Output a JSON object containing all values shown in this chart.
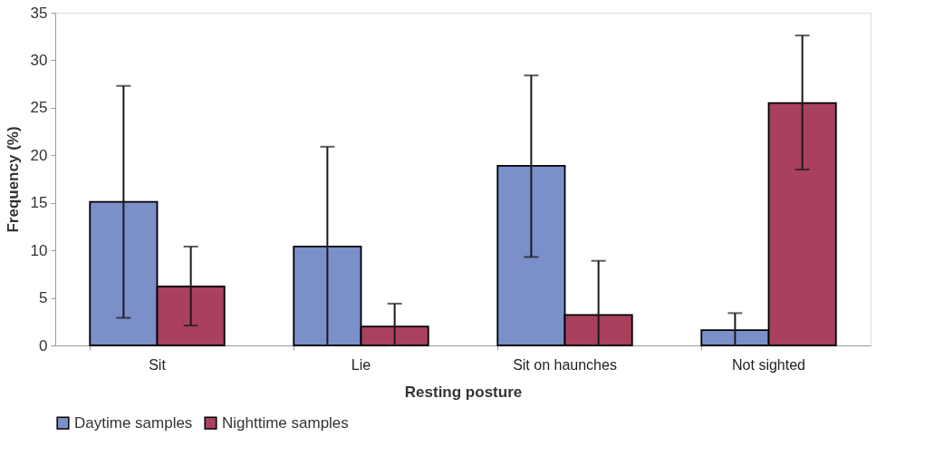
{
  "chart_data": {
    "type": "bar",
    "xlabel": "Resting posture",
    "ylabel": "Frequency (%)",
    "categories": [
      "Sit",
      "Lie",
      "Sit on haunches",
      "Not sighted"
    ],
    "series": [
      {
        "name": "Daytime samples",
        "color": "#7b8fc8",
        "values": [
          15.1,
          10.4,
          18.9,
          1.6
        ],
        "errors": [
          [
            2.9,
            27.3
          ],
          [
            0,
            20.9
          ],
          [
            9.3,
            28.4
          ],
          [
            0,
            3.4
          ]
        ]
      },
      {
        "name": "Nighttime samples",
        "color": "#a8405e",
        "values": [
          6.2,
          2.0,
          3.2,
          25.5
        ],
        "errors": [
          [
            2.1,
            10.4
          ],
          [
            0,
            4.4
          ],
          [
            0,
            8.9
          ],
          [
            18.5,
            32.6
          ]
        ]
      }
    ],
    "ylim": [
      0,
      35
    ],
    "yticks": [
      0,
      5,
      10,
      15,
      20,
      25,
      30,
      35
    ],
    "grid": false,
    "legend": "bottom"
  }
}
